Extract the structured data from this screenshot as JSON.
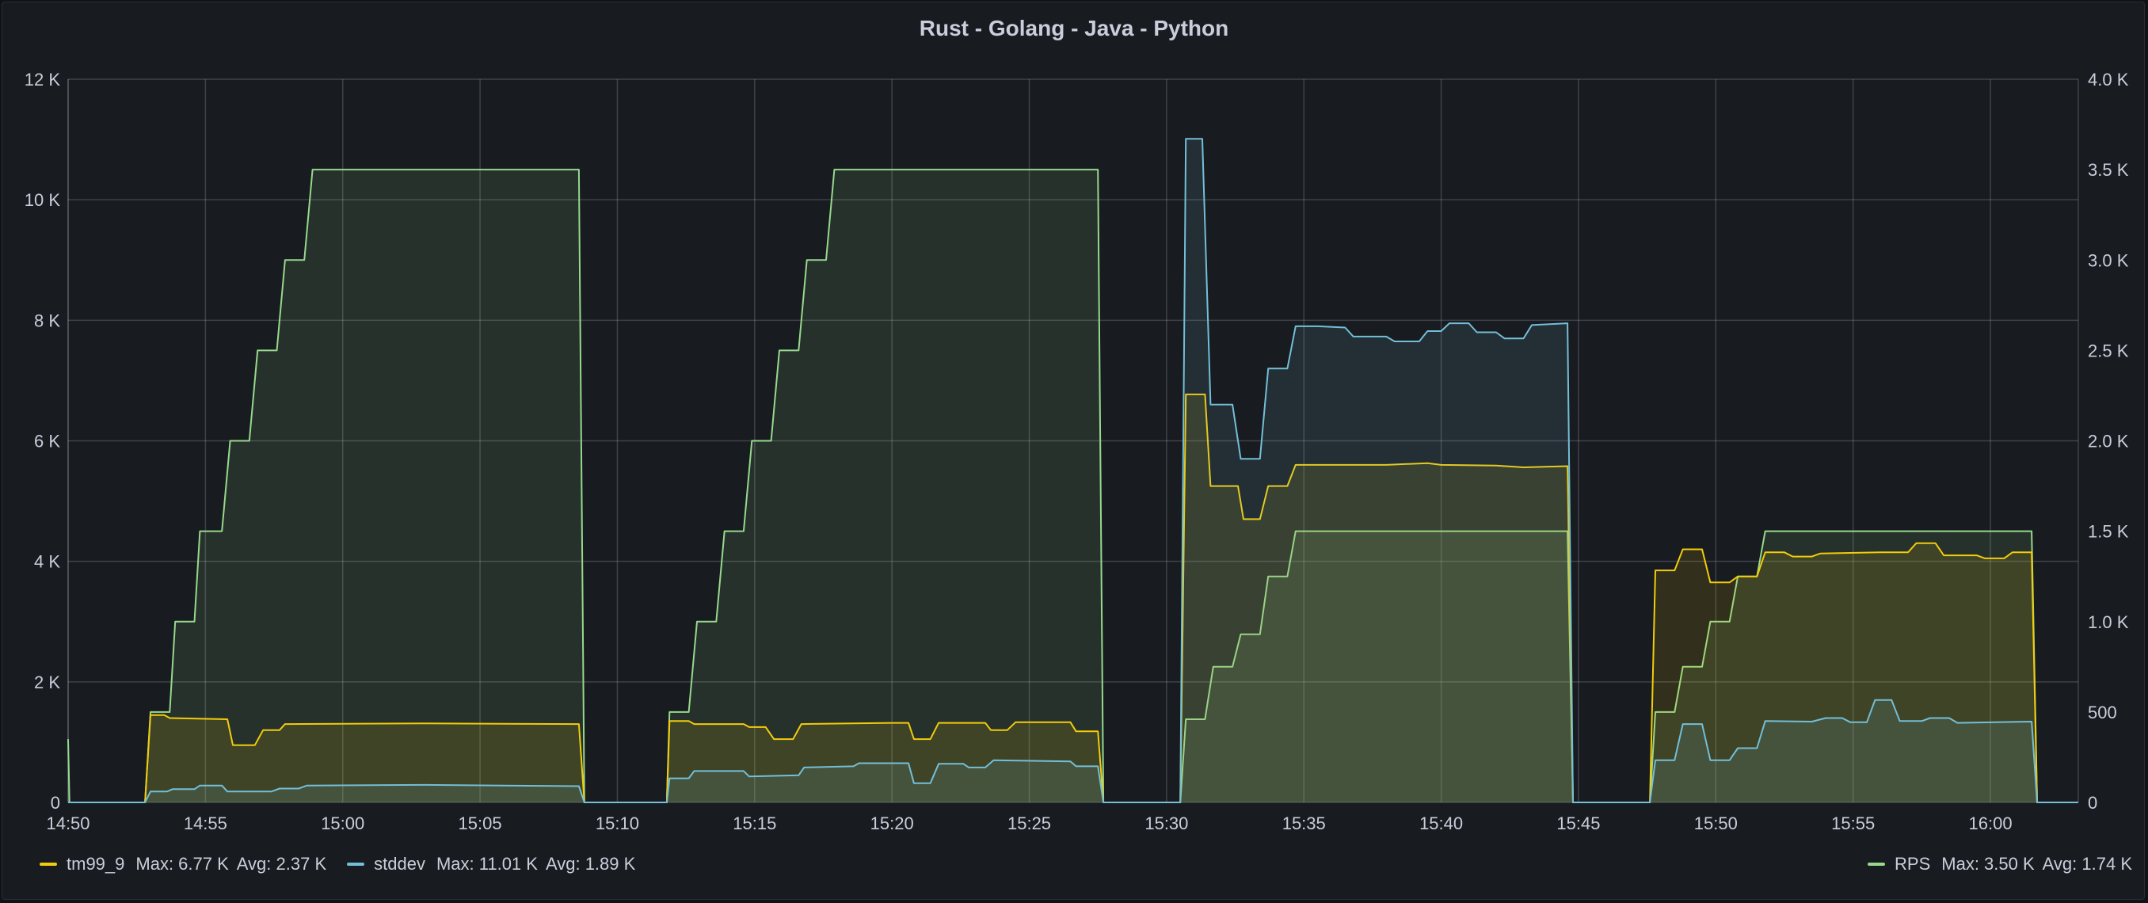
{
  "panel": {
    "title": "Rust - Golang - Java - Python"
  },
  "legend": {
    "left": [
      {
        "name": "tm99_9",
        "color": "#f2cc0c",
        "max_label": "Max: 6.77 K",
        "avg_label": "Avg: 2.37 K"
      },
      {
        "name": "stddev",
        "color": "#73bfd8",
        "max_label": "Max: 11.01 K",
        "avg_label": "Avg: 1.89 K"
      }
    ],
    "right": [
      {
        "name": "RPS",
        "color": "#96d98d",
        "max_label": "Max: 3.50 K",
        "avg_label": "Avg: 1.74 K"
      }
    ]
  },
  "chart_data": {
    "type": "area",
    "title": "Rust - Golang - Java - Python",
    "x_ticks": [
      "14:50",
      "14:55",
      "15:00",
      "15:05",
      "15:10",
      "15:15",
      "15:20",
      "15:25",
      "15:30",
      "15:35",
      "15:40",
      "15:45",
      "15:50",
      "15:55",
      "16:00"
    ],
    "y_left_ticks": [
      "0",
      "2 K",
      "4 K",
      "6 K",
      "8 K",
      "10 K",
      "12 K"
    ],
    "y_right_ticks": [
      "0",
      "500",
      "1.0 K",
      "1.5 K",
      "2.0 K",
      "2.5 K",
      "3.0 K",
      "3.5 K",
      "4.0 K"
    ],
    "x_range_minutes": [
      0,
      73.2
    ],
    "x_start_label": "14:50",
    "y_left_range": [
      0,
      12000
    ],
    "y_right_range": [
      0,
      4000
    ],
    "grid": true,
    "legend_placement": "bottom",
    "series": [
      {
        "name": "RPS",
        "axis": "right",
        "color": "#96d98d",
        "fill": "#96d98d",
        "fill_opacity": 0.12,
        "points": [
          [
            0,
            350
          ],
          [
            0.05,
            0
          ],
          [
            2.8,
            0
          ],
          [
            3,
            500
          ],
          [
            3.7,
            500
          ],
          [
            3.9,
            1000
          ],
          [
            4.6,
            1000
          ],
          [
            4.8,
            1500
          ],
          [
            5.6,
            1500
          ],
          [
            5.9,
            2000
          ],
          [
            6.6,
            2000
          ],
          [
            6.9,
            2500
          ],
          [
            7.6,
            2500
          ],
          [
            7.9,
            3000
          ],
          [
            8.6,
            3000
          ],
          [
            8.9,
            3500
          ],
          [
            18.6,
            3500
          ],
          [
            18.8,
            0
          ],
          [
            21.8,
            0
          ],
          [
            21.9,
            500
          ],
          [
            22.6,
            500
          ],
          [
            22.9,
            1000
          ],
          [
            23.6,
            1000
          ],
          [
            23.9,
            1500
          ],
          [
            24.6,
            1500
          ],
          [
            24.9,
            2000
          ],
          [
            25.6,
            2000
          ],
          [
            25.9,
            2500
          ],
          [
            26.6,
            2500
          ],
          [
            26.9,
            3000
          ],
          [
            27.6,
            3000
          ],
          [
            27.9,
            3500
          ],
          [
            37.5,
            3500
          ],
          [
            37.7,
            0
          ],
          [
            40.5,
            0
          ],
          [
            40.7,
            460
          ],
          [
            41.4,
            460
          ],
          [
            41.7,
            750
          ],
          [
            42.4,
            750
          ],
          [
            42.7,
            930
          ],
          [
            43.4,
            930
          ],
          [
            43.7,
            1250
          ],
          [
            44.4,
            1250
          ],
          [
            44.7,
            1500
          ],
          [
            54.6,
            1500
          ],
          [
            54.8,
            0
          ],
          [
            57.6,
            0
          ],
          [
            57.8,
            500
          ],
          [
            58.5,
            500
          ],
          [
            58.8,
            750
          ],
          [
            59.5,
            750
          ],
          [
            59.8,
            1000
          ],
          [
            60.5,
            1000
          ],
          [
            60.8,
            1250
          ],
          [
            61.5,
            1250
          ],
          [
            61.8,
            1500
          ],
          [
            71.5,
            1500
          ],
          [
            71.7,
            0
          ],
          [
            73.2,
            0
          ]
        ]
      },
      {
        "name": "tm99_9",
        "axis": "left",
        "color": "#f2cc0c",
        "fill": "#f2cc0c",
        "fill_opacity": 0.12,
        "points": [
          [
            0,
            0
          ],
          [
            2.8,
            0
          ],
          [
            3,
            1450
          ],
          [
            3.5,
            1450
          ],
          [
            3.7,
            1400
          ],
          [
            5.8,
            1380
          ],
          [
            6,
            950
          ],
          [
            6.8,
            950
          ],
          [
            7.1,
            1200
          ],
          [
            7.7,
            1200
          ],
          [
            7.9,
            1300
          ],
          [
            13,
            1310
          ],
          [
            18.6,
            1300
          ],
          [
            18.8,
            0
          ],
          [
            21.8,
            0
          ],
          [
            21.9,
            1350
          ],
          [
            22.6,
            1350
          ],
          [
            22.8,
            1300
          ],
          [
            24.6,
            1300
          ],
          [
            24.8,
            1250
          ],
          [
            25.4,
            1250
          ],
          [
            25.7,
            1050
          ],
          [
            26.4,
            1050
          ],
          [
            26.7,
            1300
          ],
          [
            30,
            1320
          ],
          [
            30.6,
            1320
          ],
          [
            30.8,
            1050
          ],
          [
            31.4,
            1050
          ],
          [
            31.7,
            1320
          ],
          [
            33.4,
            1320
          ],
          [
            33.6,
            1200
          ],
          [
            34.2,
            1200
          ],
          [
            34.5,
            1330
          ],
          [
            36.5,
            1330
          ],
          [
            36.7,
            1180
          ],
          [
            37.5,
            1180
          ],
          [
            37.7,
            0
          ],
          [
            40.5,
            0
          ],
          [
            40.7,
            6770
          ],
          [
            41.4,
            6770
          ],
          [
            41.6,
            5250
          ],
          [
            42.6,
            5250
          ],
          [
            42.8,
            4700
          ],
          [
            43.4,
            4700
          ],
          [
            43.7,
            5250
          ],
          [
            44.4,
            5250
          ],
          [
            44.7,
            5600
          ],
          [
            48,
            5600
          ],
          [
            49.5,
            5630
          ],
          [
            50,
            5600
          ],
          [
            52,
            5590
          ],
          [
            53,
            5560
          ],
          [
            54.6,
            5580
          ],
          [
            54.8,
            0
          ],
          [
            57.6,
            0
          ],
          [
            57.8,
            3850
          ],
          [
            58.5,
            3850
          ],
          [
            58.8,
            4200
          ],
          [
            59.5,
            4200
          ],
          [
            59.8,
            3650
          ],
          [
            60.5,
            3650
          ],
          [
            60.8,
            3750
          ],
          [
            61.5,
            3750
          ],
          [
            61.8,
            4150
          ],
          [
            62.5,
            4150
          ],
          [
            62.8,
            4080
          ],
          [
            63.5,
            4080
          ],
          [
            63.8,
            4130
          ],
          [
            66,
            4150
          ],
          [
            67,
            4150
          ],
          [
            67.3,
            4300
          ],
          [
            68,
            4300
          ],
          [
            68.3,
            4100
          ],
          [
            69.5,
            4100
          ],
          [
            69.8,
            4050
          ],
          [
            70.5,
            4050
          ],
          [
            70.8,
            4150
          ],
          [
            71.5,
            4150
          ],
          [
            71.7,
            0
          ],
          [
            73.2,
            0
          ]
        ]
      },
      {
        "name": "stddev",
        "axis": "left",
        "color": "#73bfd8",
        "fill": "#73bfd8",
        "fill_opacity": 0.12,
        "points": [
          [
            0,
            0
          ],
          [
            2.8,
            0
          ],
          [
            3,
            180
          ],
          [
            3.6,
            180
          ],
          [
            3.8,
            220
          ],
          [
            4.6,
            220
          ],
          [
            4.8,
            280
          ],
          [
            5.6,
            280
          ],
          [
            5.8,
            180
          ],
          [
            7.4,
            180
          ],
          [
            7.7,
            230
          ],
          [
            8.4,
            230
          ],
          [
            8.7,
            280
          ],
          [
            13,
            290
          ],
          [
            18.6,
            270
          ],
          [
            18.8,
            0
          ],
          [
            21.8,
            0
          ],
          [
            21.9,
            400
          ],
          [
            22.6,
            400
          ],
          [
            22.8,
            520
          ],
          [
            24.6,
            520
          ],
          [
            24.8,
            430
          ],
          [
            26.6,
            450
          ],
          [
            26.8,
            580
          ],
          [
            28.6,
            600
          ],
          [
            28.8,
            650
          ],
          [
            30.6,
            650
          ],
          [
            30.8,
            320
          ],
          [
            31.4,
            320
          ],
          [
            31.7,
            640
          ],
          [
            32.6,
            640
          ],
          [
            32.8,
            580
          ],
          [
            33.4,
            580
          ],
          [
            33.7,
            700
          ],
          [
            36.5,
            680
          ],
          [
            36.7,
            600
          ],
          [
            37.5,
            600
          ],
          [
            37.7,
            0
          ],
          [
            40.5,
            0
          ],
          [
            40.7,
            11010
          ],
          [
            41.3,
            11010
          ],
          [
            41.6,
            6600
          ],
          [
            42.4,
            6600
          ],
          [
            42.7,
            5700
          ],
          [
            43.4,
            5700
          ],
          [
            43.7,
            7200
          ],
          [
            44.4,
            7200
          ],
          [
            44.7,
            7900
          ],
          [
            45.5,
            7900
          ],
          [
            46.5,
            7880
          ],
          [
            46.8,
            7730
          ],
          [
            48,
            7730
          ],
          [
            48.3,
            7650
          ],
          [
            49.2,
            7650
          ],
          [
            49.5,
            7820
          ],
          [
            50,
            7820
          ],
          [
            50.3,
            7950
          ],
          [
            51,
            7950
          ],
          [
            51.3,
            7800
          ],
          [
            52,
            7800
          ],
          [
            52.3,
            7700
          ],
          [
            53,
            7700
          ],
          [
            53.3,
            7920
          ],
          [
            54.6,
            7950
          ],
          [
            54.8,
            0
          ],
          [
            57.6,
            0
          ],
          [
            57.8,
            700
          ],
          [
            58.5,
            700
          ],
          [
            58.8,
            1300
          ],
          [
            59.5,
            1300
          ],
          [
            59.8,
            700
          ],
          [
            60.5,
            700
          ],
          [
            60.8,
            900
          ],
          [
            61.5,
            900
          ],
          [
            61.8,
            1350
          ],
          [
            63.5,
            1340
          ],
          [
            64,
            1400
          ],
          [
            64.6,
            1400
          ],
          [
            64.9,
            1330
          ],
          [
            65.5,
            1330
          ],
          [
            65.8,
            1700
          ],
          [
            66.4,
            1700
          ],
          [
            66.7,
            1350
          ],
          [
            67.5,
            1350
          ],
          [
            67.8,
            1400
          ],
          [
            68.5,
            1400
          ],
          [
            68.8,
            1320
          ],
          [
            71.5,
            1340
          ],
          [
            71.7,
            0
          ],
          [
            73.2,
            0
          ]
        ]
      }
    ]
  }
}
